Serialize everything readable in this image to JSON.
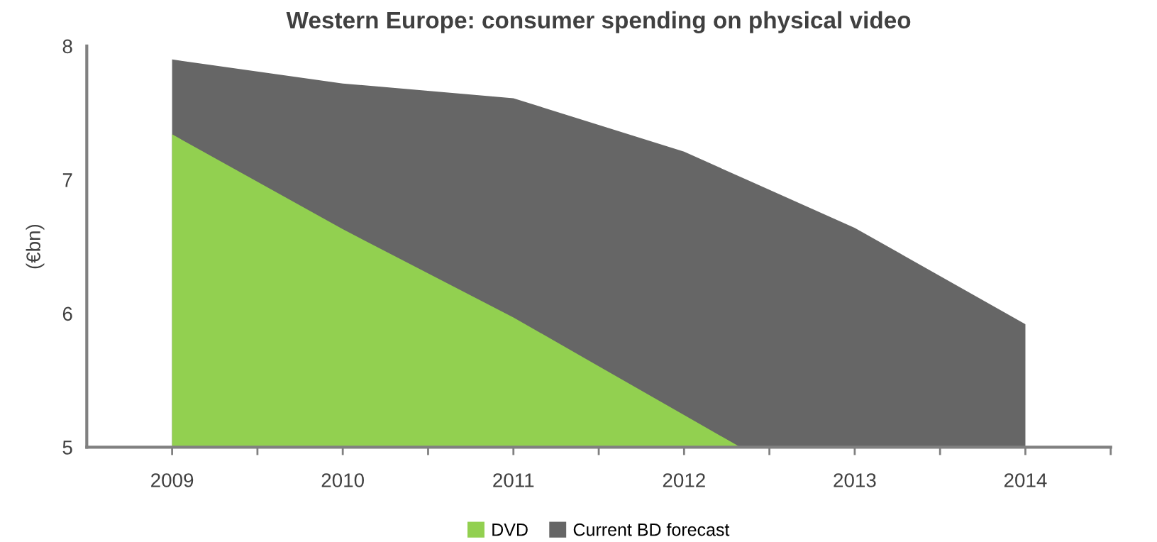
{
  "chart_data": {
    "type": "area",
    "title": "Western Europe: consumer spending on physical video",
    "ylabel": "(€bn)",
    "x": [
      2009,
      2010,
      2011,
      2012,
      2013,
      2014
    ],
    "series": [
      {
        "name": "Current BD forecast",
        "color": "#666666",
        "values": [
          7.9,
          7.72,
          7.61,
          7.21,
          6.64,
          5.92
        ]
      },
      {
        "name": "DVD",
        "color": "#92d050",
        "x": [
          2009,
          2010,
          2011,
          2012,
          2012.33
        ],
        "values": [
          7.34,
          6.63,
          5.97,
          5.24,
          5
        ]
      }
    ],
    "xlim": [
      2008.5,
      2014.5
    ],
    "xticks": [
      {
        "value": 2009,
        "label": "2009"
      },
      {
        "value": 2010,
        "label": "2010"
      },
      {
        "value": 2011,
        "label": "2011"
      },
      {
        "value": 2012,
        "label": "2012"
      },
      {
        "value": 2013,
        "label": "2013"
      },
      {
        "value": 2014,
        "label": "2014"
      },
      {
        "value": 2009.5,
        "label": null
      },
      {
        "value": 2010.5,
        "label": null
      },
      {
        "value": 2011.5,
        "label": null
      },
      {
        "value": 2012.5,
        "label": null
      },
      {
        "value": 2013.5,
        "label": null
      },
      {
        "value": 2014.5,
        "label": null
      }
    ],
    "ylim": [
      5,
      8
    ],
    "yticks": [
      5,
      6,
      7,
      8
    ],
    "grid": false,
    "legend": "bottom"
  }
}
